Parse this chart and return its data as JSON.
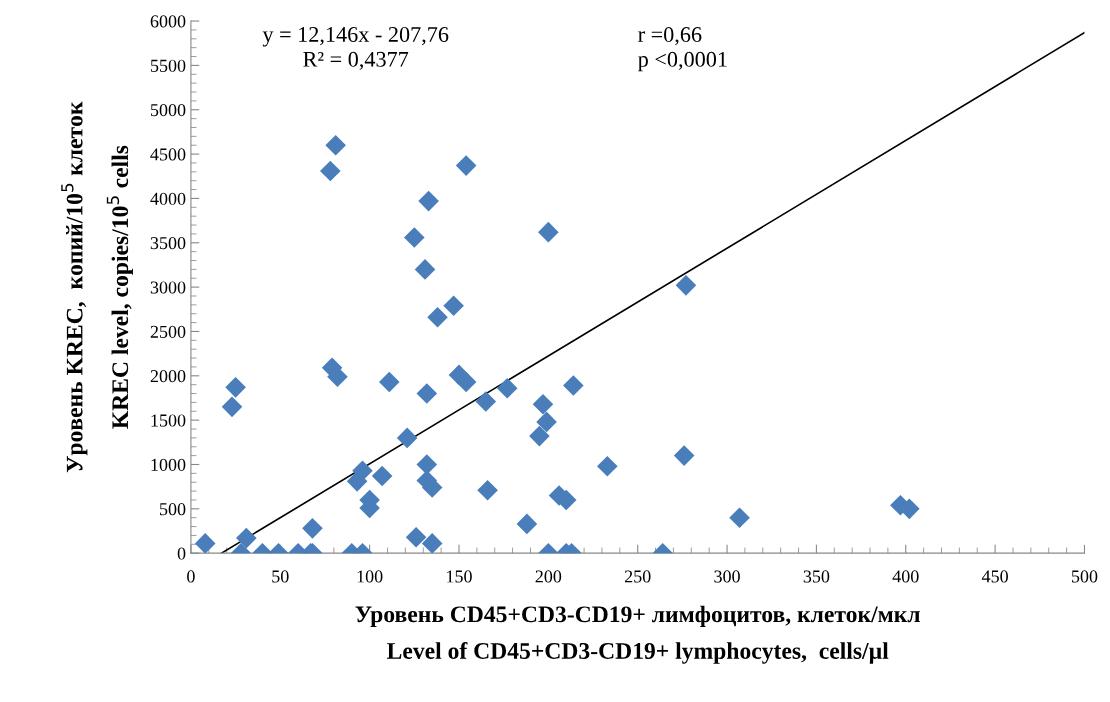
{
  "chart_data": {
    "type": "scatter",
    "xlabel": "Уровень CD45+CD3-CD19+ лимфоцитов, клеток/мкл\nLevel of CD45+CD3-CD19+ lymphocytes,  cells/µl",
    "ylabel": "Уровень KREC,  копий/10$^{5}$ клеток\nKREC level, copies/10$^{5}$ cells",
    "xlim": [
      0,
      500
    ],
    "xticks": [
      0,
      50,
      100,
      150,
      200,
      250,
      300,
      350,
      400,
      450,
      500
    ],
    "ylim": [
      0,
      6000
    ],
    "yticks": [
      0,
      500,
      1000,
      1500,
      2000,
      2500,
      3000,
      3500,
      4000,
      4500,
      5000,
      5500,
      6000
    ],
    "grid": false,
    "legend": false,
    "marker": "diamond",
    "annotations": [
      "y = 12,146x - 207,76\nR² = 0,4377",
      "r =0,66\np <0,0001"
    ],
    "series": [
      {
        "color": "#4a7ebb",
        "x": [
          8,
          23,
          25,
          28,
          31,
          40,
          49,
          60,
          67,
          68,
          68,
          78,
          81,
          79,
          82,
          90,
          96,
          93,
          96,
          100,
          100,
          107,
          111,
          121,
          126,
          125,
          131,
          133,
          132,
          132,
          132,
          135,
          135,
          138,
          147,
          150,
          154,
          154,
          165,
          166,
          177,
          200,
          197,
          199,
          195,
          214,
          277,
          276,
          233,
          188,
          206,
          210,
          307,
          200,
          210,
          213,
          264,
          397,
          402
        ],
        "values": [
          110,
          1650,
          1870,
          0,
          170,
          0,
          0,
          0,
          0,
          0,
          280,
          4310,
          4600,
          2090,
          1990,
          0,
          0,
          810,
          930,
          600,
          510,
          870,
          1930,
          1300,
          180,
          3560,
          3200,
          3970,
          1800,
          1000,
          820,
          740,
          110,
          2660,
          2790,
          2010,
          1930,
          4370,
          1710,
          710,
          1860,
          3620,
          1680,
          1480,
          1320,
          1890,
          3020,
          1100,
          980,
          330,
          650,
          600,
          400,
          0,
          0,
          0,
          0,
          540,
          500
        ]
      },
      {
        "type": "line",
        "color": "#000000",
        "marker": "none",
        "x": [
          17.1,
          500
        ],
        "values": [
          0,
          5870
        ]
      }
    ]
  }
}
